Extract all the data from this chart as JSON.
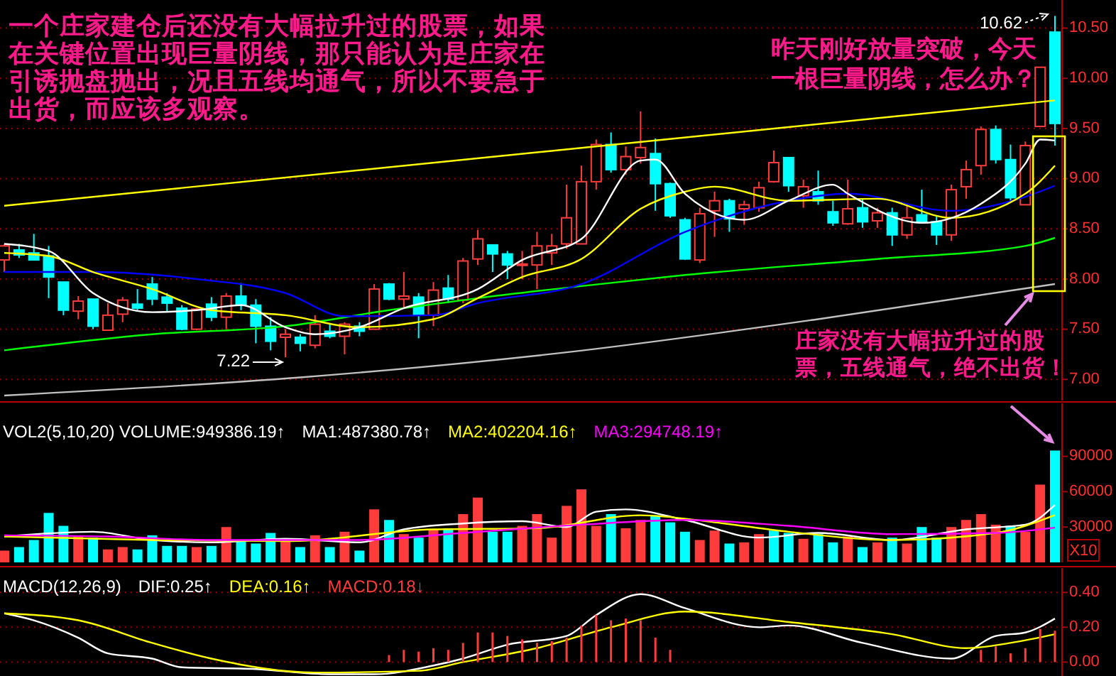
{
  "chart_data": [
    {
      "type": "candlestick",
      "categories": [
        null,
        null,
        null,
        null,
        null,
        null,
        null,
        null,
        null,
        null,
        null,
        null,
        null,
        null,
        null,
        null,
        null,
        null,
        null,
        null,
        null,
        null,
        null,
        null,
        null,
        null,
        null,
        null,
        null,
        null,
        null,
        null,
        null,
        null,
        null,
        null,
        null,
        null,
        null,
        null,
        null,
        null,
        null,
        null,
        null,
        null,
        null,
        null,
        null,
        null,
        null,
        null,
        null,
        null,
        null,
        null,
        null,
        null,
        null,
        null,
        null,
        null,
        null,
        null,
        null,
        null,
        null,
        null,
        null,
        null,
        null,
        null
      ],
      "ohlc": [
        [
          8.19,
          8.35,
          8.07,
          8.33
        ],
        [
          8.29,
          8.35,
          8.21,
          8.24
        ],
        [
          8.26,
          8.45,
          8.19,
          8.19
        ],
        [
          8.23,
          8.33,
          7.81,
          8.02
        ],
        [
          7.97,
          7.97,
          7.64,
          7.69
        ],
        [
          7.68,
          7.83,
          7.6,
          7.78
        ],
        [
          7.8,
          7.8,
          7.5,
          7.53
        ],
        [
          7.49,
          7.76,
          7.49,
          7.64
        ],
        [
          7.65,
          7.82,
          7.57,
          7.79
        ],
        [
          7.75,
          7.9,
          7.69,
          7.71
        ],
        [
          7.95,
          8.02,
          7.74,
          7.8
        ],
        [
          7.82,
          7.86,
          7.67,
          7.76
        ],
        [
          7.71,
          7.74,
          7.49,
          7.5
        ],
        [
          7.5,
          7.71,
          7.49,
          7.7
        ],
        [
          7.75,
          7.82,
          7.58,
          7.62
        ],
        [
          7.62,
          7.86,
          7.5,
          7.83
        ],
        [
          7.83,
          7.96,
          7.69,
          7.74
        ],
        [
          7.74,
          7.8,
          7.36,
          7.53
        ],
        [
          7.53,
          7.62,
          7.29,
          7.38
        ],
        [
          7.42,
          7.5,
          7.22,
          7.45
        ],
        [
          7.42,
          7.45,
          7.28,
          7.36
        ],
        [
          7.34,
          7.64,
          7.31,
          7.55
        ],
        [
          7.48,
          7.55,
          7.41,
          7.43
        ],
        [
          7.43,
          7.57,
          7.25,
          7.55
        ],
        [
          7.53,
          7.57,
          7.43,
          7.48
        ],
        [
          7.5,
          7.95,
          7.5,
          7.9
        ],
        [
          7.95,
          7.96,
          7.79,
          7.8
        ],
        [
          7.8,
          8.07,
          7.71,
          7.83
        ],
        [
          7.82,
          7.86,
          7.41,
          7.64
        ],
        [
          7.64,
          7.97,
          7.53,
          7.89
        ],
        [
          7.91,
          8.04,
          7.76,
          7.8
        ],
        [
          7.79,
          8.21,
          7.76,
          8.18
        ],
        [
          8.2,
          8.49,
          8.14,
          8.4
        ],
        [
          8.34,
          8.34,
          8.07,
          8.25
        ],
        [
          8.25,
          8.28,
          8,
          8.14
        ],
        [
          8.14,
          8.28,
          8,
          8.15
        ],
        [
          8.14,
          8.47,
          7.9,
          8.33
        ],
        [
          8.26,
          8.45,
          8.14,
          8.33
        ],
        [
          8.35,
          8.94,
          8.3,
          8.61
        ],
        [
          8.35,
          9.13,
          8.35,
          8.97
        ],
        [
          8.97,
          9.39,
          8.89,
          9.34
        ],
        [
          9.34,
          9.46,
          9.06,
          9.09
        ],
        [
          9.09,
          9.32,
          9.04,
          9.22
        ],
        [
          9.21,
          9.67,
          9.15,
          9.31
        ],
        [
          9.25,
          9.4,
          8.68,
          8.95
        ],
        [
          8.95,
          8.96,
          8.61,
          8.63
        ],
        [
          8.59,
          8.61,
          8.19,
          8.2
        ],
        [
          8.19,
          8.71,
          8.16,
          8.65
        ],
        [
          8.68,
          8.87,
          8.42,
          8.78
        ],
        [
          8.78,
          8.8,
          8.47,
          8.6
        ],
        [
          8.7,
          8.78,
          8.54,
          8.74
        ],
        [
          8.71,
          8.97,
          8.67,
          8.91
        ],
        [
          8.97,
          9.28,
          8.96,
          9.16
        ],
        [
          9.21,
          9.21,
          8.87,
          8.93
        ],
        [
          8.83,
          8.99,
          8.71,
          8.92
        ],
        [
          8.87,
          9.08,
          8.74,
          8.78
        ],
        [
          8.67,
          8.78,
          8.53,
          8.56
        ],
        [
          8.55,
          8.99,
          8.54,
          8.7
        ],
        [
          8.71,
          8.8,
          8.51,
          8.57
        ],
        [
          8.58,
          8.71,
          8.51,
          8.66
        ],
        [
          8.66,
          8.71,
          8.33,
          8.44
        ],
        [
          8.44,
          8.74,
          8.4,
          8.61
        ],
        [
          8.64,
          8.89,
          8.56,
          8.57
        ],
        [
          8.57,
          8.63,
          8.34,
          8.44
        ],
        [
          8.44,
          8.94,
          8.38,
          8.89
        ],
        [
          8.92,
          9.18,
          8.8,
          9.09
        ],
        [
          9.13,
          9.52,
          9.04,
          9.49
        ],
        [
          9.49,
          9.53,
          9.15,
          9.19
        ],
        [
          9.19,
          9.34,
          8.78,
          8.81
        ],
        [
          8.74,
          9.37,
          8.74,
          9.33
        ],
        [
          9.52,
          10.11,
          9.52,
          10.11
        ],
        [
          10.46,
          10.62,
          9.33,
          9.55
        ]
      ],
      "series": [
        {
          "type": "line",
          "color": "#ffff00",
          "values": [
            8.73,
            null,
            null,
            null,
            null,
            null,
            null,
            null,
            null,
            null,
            null,
            null,
            null,
            null,
            null,
            null,
            null,
            null,
            null,
            null,
            null,
            null,
            null,
            null,
            null,
            null,
            null,
            null,
            null,
            null,
            null,
            null,
            null,
            null,
            null,
            null,
            null,
            null,
            null,
            null,
            null,
            null,
            null,
            null,
            null,
            null,
            null,
            null,
            null,
            null,
            null,
            null,
            null,
            null,
            null,
            null,
            null,
            null,
            null,
            null,
            null,
            null,
            null,
            null,
            null,
            null,
            null,
            null,
            null,
            null,
            null,
            9.78
          ]
        },
        {
          "type": "line",
          "color": "#c0c0c0",
          "values": [
            6.84,
            null,
            null,
            null,
            null,
            null,
            null,
            null,
            null,
            null,
            null,
            null,
            null,
            null,
            null,
            null,
            null,
            null,
            null,
            null,
            7.02,
            null,
            null,
            null,
            null,
            null,
            null,
            null,
            null,
            null,
            null,
            null,
            null,
            null,
            null,
            null,
            null,
            null,
            7.27,
            null,
            null,
            null,
            null,
            null,
            null,
            null,
            null,
            null,
            null,
            null,
            null,
            null,
            null,
            null,
            null,
            7.6,
            null,
            null,
            null,
            null,
            null,
            null,
            null,
            null,
            null,
            null,
            null,
            null,
            null,
            null,
            null,
            7.95
          ]
        },
        {
          "type": "line",
          "color": "#00ff00",
          "values": [
            7.29,
            null,
            null,
            null,
            null,
            null,
            null,
            null,
            null,
            null,
            7.45,
            null,
            null,
            null,
            null,
            null,
            null,
            null,
            null,
            7.53,
            null,
            null,
            null,
            null,
            null,
            null,
            7.69,
            null,
            null,
            null,
            null,
            null,
            7.81,
            null,
            null,
            null,
            null,
            null,
            null,
            7.93,
            null,
            null,
            null,
            null,
            null,
            null,
            8.04,
            null,
            null,
            null,
            null,
            null,
            null,
            null,
            null,
            null,
            null,
            null,
            null,
            8.2,
            null,
            null,
            null,
            null,
            null,
            null,
            null,
            null,
            null,
            8.33,
            null,
            8.41
          ]
        },
        {
          "type": "line",
          "color": "#0000ff",
          "values": [
            8.07,
            null,
            null,
            null,
            null,
            null,
            8.07,
            null,
            null,
            null,
            null,
            null,
            null,
            8,
            null,
            null,
            null,
            null,
            null,
            7.86,
            null,
            null,
            null,
            7.63,
            null,
            null,
            null,
            null,
            null,
            7.64,
            null,
            null,
            7.76,
            null,
            null,
            null,
            null,
            null,
            null,
            7.95,
            null,
            null,
            null,
            null,
            null,
            null,
            8.47,
            null,
            null,
            null,
            null,
            null,
            null,
            8.78,
            null,
            null,
            null,
            8.85,
            null,
            null,
            null,
            null,
            null,
            null,
            8.68,
            null,
            null,
            null,
            null,
            8.82,
            null,
            8.93
          ]
        },
        {
          "type": "line",
          "color": "#ffff00",
          "values": [
            8.26,
            null,
            null,
            8.23,
            null,
            null,
            8.07,
            null,
            null,
            null,
            7.9,
            null,
            null,
            null,
            7.69,
            null,
            null,
            null,
            null,
            7.64,
            null,
            null,
            null,
            null,
            7.52,
            null,
            null,
            null,
            null,
            7.6,
            null,
            null,
            7.81,
            null,
            null,
            8.02,
            null,
            null,
            null,
            8.2,
            null,
            null,
            null,
            8.7,
            null,
            null,
            8.87,
            null,
            8.92,
            null,
            null,
            null,
            null,
            8.78,
            null,
            null,
            null,
            null,
            null,
            8.8,
            null,
            null,
            null,
            null,
            8.61,
            null,
            null,
            null,
            null,
            8.85,
            null,
            9.13
          ]
        },
        {
          "type": "line",
          "color": "#ffffff",
          "values": [
            8.35,
            null,
            null,
            8.28,
            null,
            null,
            7.86,
            null,
            null,
            null,
            7.67,
            null,
            null,
            7.69,
            null,
            null,
            7.74,
            null,
            null,
            7.52,
            null,
            7.45,
            null,
            null,
            7.52,
            null,
            null,
            7.71,
            null,
            null,
            null,
            null,
            7.9,
            null,
            null,
            8.19,
            null,
            null,
            null,
            8.4,
            null,
            null,
            null,
            9.18,
            9.19,
            null,
            8.85,
            null,
            null,
            null,
            8.59,
            null,
            null,
            8.78,
            null,
            null,
            8.94,
            8.85,
            null,
            null,
            null,
            null,
            8.56,
            null,
            null,
            null,
            8.75,
            null,
            null,
            9.15,
            9.39,
            9.38
          ]
        }
      ],
      "ylim": [
        6.79,
        10.78
      ],
      "yticks": [
        {
          "value": 7,
          "label": "7.00"
        },
        {
          "value": 7.5,
          "label": "7.50"
        },
        {
          "value": 8,
          "label": "8.00"
        },
        {
          "value": 8.5,
          "label": "8.50"
        },
        {
          "value": 9,
          "label": "9.00"
        },
        {
          "value": 9.5,
          "label": "9.50"
        },
        {
          "value": 10,
          "label": "10.00"
        },
        {
          "value": 10.5,
          "label": "10.50"
        }
      ],
      "grid": "y",
      "tick_labels": "y",
      "annotations": [
        "一个庄家建仓后还没有大幅拉升过的股票，如果在关键位置出现巨量阴线，那只能认为是庄家在引诱抛盘抛出，况且五线均通气，所以不要急于出货，而应该多观察。",
        "昨天刚好放量突破，今天一根巨量阴线，怎么办？",
        "庄家没有大幅拉升过的股票，五线通气，绝不出货！",
        "7.22",
        "10.62"
      ]
    },
    {
      "type": "bar",
      "title": "VOL2(5,10,20) VOLUME:949386.19↑",
      "categories": [
        null,
        null,
        null,
        null,
        null,
        null,
        null,
        null,
        null,
        null,
        null,
        null,
        null,
        null,
        null,
        null,
        null,
        null,
        null,
        null,
        null,
        null,
        null,
        null,
        null,
        null,
        null,
        null,
        null,
        null,
        null,
        null,
        null,
        null,
        null,
        null,
        null,
        null,
        null,
        null,
        null,
        null,
        null,
        null,
        null,
        null,
        null,
        null,
        null,
        null,
        null,
        null,
        null,
        null,
        null,
        null,
        null,
        null,
        null,
        null,
        null,
        null,
        null,
        null,
        null,
        null,
        null,
        null,
        null,
        null,
        null,
        null
      ],
      "series": [
        {
          "type": "bar",
          "colors": [
            "#ff3c3c",
            "#00ffff",
            "#00ffff",
            "#00ffff",
            "#00ffff",
            "#ff3c3c",
            "#00ffff",
            "#ff3c3c",
            "#ff3c3c",
            "#00ffff",
            "#00ffff",
            "#00ffff",
            "#00ffff",
            "#ff3c3c",
            "#00ffff",
            "#ff3c3c",
            "#00ffff",
            "#00ffff",
            "#00ffff",
            "#ff3c3c",
            "#00ffff",
            "#ff3c3c",
            "#00ffff",
            "#ff3c3c",
            "#00ffff",
            "#ff3c3c",
            "#00ffff",
            "#ff3c3c",
            "#00ffff",
            "#ff3c3c",
            "#00ffff",
            "#ff3c3c",
            "#ff3c3c",
            "#00ffff",
            "#00ffff",
            "#ff3c3c",
            "#ff3c3c",
            "#ff3c3c",
            "#ff3c3c",
            "#ff3c3c",
            "#ff3c3c",
            "#00ffff",
            "#ff3c3c",
            "#ff3c3c",
            "#00ffff",
            "#00ffff",
            "#00ffff",
            "#ff3c3c",
            "#ff3c3c",
            "#00ffff",
            "#ff3c3c",
            "#ff3c3c",
            "#00ffff",
            "#00ffff",
            "#ff3c3c",
            "#00ffff",
            "#00ffff",
            "#ff3c3c",
            "#00ffff",
            "#ff3c3c",
            "#00ffff",
            "#ff3c3c",
            "#00ffff",
            "#00ffff",
            "#ff3c3c",
            "#ff3c3c",
            "#ff3c3c",
            "#ff3c3c",
            "#00ffff",
            "#ff3c3c",
            "#ff3c3c",
            "#00ffff"
          ],
          "values": [
            10000,
            13000,
            19000,
            42000,
            31000,
            22000,
            21000,
            11000,
            13000,
            11000,
            23000,
            14000,
            14000,
            13000,
            14000,
            30000,
            19000,
            16000,
            25000,
            20000,
            13000,
            23000,
            13000,
            26000,
            10000,
            45000,
            36000,
            24000,
            21000,
            28000,
            29000,
            41000,
            55000,
            26000,
            26000,
            31000,
            41000,
            21000,
            48000,
            62000,
            31000,
            41000,
            29000,
            36000,
            40000,
            34000,
            26000,
            19000,
            27000,
            16000,
            17000,
            24000,
            27000,
            25000,
            20000,
            24000,
            17000,
            22000,
            13000,
            17000,
            21000,
            16000,
            30000,
            21000,
            30000,
            36000,
            41000,
            32000,
            31000,
            26000,
            66000,
            94939
          ]
        },
        {
          "type": "line",
          "name": "MA1:487380.78↑",
          "color": "#ffffff",
          "values": [
            22000,
            null,
            null,
            null,
            null,
            null,
            26000,
            null,
            null,
            null,
            19000,
            null,
            null,
            null,
            17000,
            null,
            null,
            null,
            null,
            20000,
            null,
            null,
            null,
            null,
            17000,
            null,
            null,
            28000,
            null,
            null,
            null,
            33000,
            null,
            null,
            null,
            35000,
            null,
            null,
            30000,
            null,
            43000,
            null,
            45000,
            null,
            null,
            null,
            36000,
            null,
            null,
            null,
            null,
            21000,
            null,
            null,
            null,
            25000,
            null,
            null,
            null,
            null,
            19000,
            null,
            null,
            null,
            null,
            28000,
            null,
            null,
            null,
            32000,
            null,
            48738
          ]
        },
        {
          "type": "line",
          "name": "MA2:402204.16↑",
          "color": "#ffff00",
          "values": [
            22000,
            null,
            null,
            null,
            null,
            null,
            null,
            null,
            null,
            null,
            19000,
            null,
            null,
            null,
            null,
            null,
            null,
            null,
            null,
            18000,
            null,
            null,
            null,
            null,
            null,
            null,
            null,
            null,
            null,
            28000,
            null,
            null,
            null,
            null,
            null,
            null,
            29000,
            null,
            null,
            null,
            null,
            null,
            null,
            40000,
            null,
            null,
            null,
            null,
            34000,
            null,
            null,
            null,
            null,
            26000,
            null,
            null,
            null,
            null,
            null,
            null,
            19000,
            null,
            null,
            null,
            null,
            null,
            null,
            25000,
            null,
            null,
            null,
            40220
          ]
        },
        {
          "type": "line",
          "name": "MA3:294748.19↑",
          "color": "#ff00ff",
          "values": [
            23000,
            null,
            null,
            null,
            null,
            null,
            null,
            22000,
            null,
            null,
            null,
            null,
            null,
            null,
            19000,
            null,
            null,
            null,
            null,
            null,
            null,
            null,
            null,
            null,
            19000,
            null,
            null,
            null,
            null,
            null,
            null,
            25000,
            null,
            null,
            null,
            null,
            null,
            null,
            null,
            32000,
            null,
            null,
            null,
            null,
            null,
            null,
            36000,
            null,
            null,
            null,
            null,
            null,
            null,
            31000,
            null,
            null,
            null,
            null,
            null,
            null,
            24000,
            null,
            null,
            null,
            null,
            null,
            null,
            25000,
            null,
            null,
            null,
            29475
          ]
        }
      ],
      "ylim": [
        0,
        135000
      ],
      "yticks": [
        30000,
        60000,
        90000
      ],
      "legend": "top left",
      "tick_labels": "y",
      "annotations": [
        "X10"
      ]
    },
    {
      "type": "bar",
      "title": "MACD(12,26,9)",
      "categories": [
        null,
        null,
        null,
        null,
        null,
        null,
        null,
        null,
        null,
        null,
        null,
        null,
        null,
        null,
        null,
        null,
        null,
        null,
        null,
        null,
        null,
        null,
        null,
        null,
        null,
        null,
        null,
        null,
        null,
        null,
        null,
        null,
        null,
        null,
        null,
        null,
        null,
        null,
        null,
        null,
        null,
        null,
        null,
        null,
        null,
        null,
        null,
        null,
        null,
        null,
        null,
        null,
        null,
        null,
        null,
        null,
        null,
        null,
        null,
        null,
        null,
        null,
        null,
        null,
        null,
        null,
        null,
        null,
        null,
        null,
        null,
        null
      ],
      "series": [
        {
          "type": "line",
          "name": "DIF:0.25↑",
          "color": "#ffffff",
          "values": [
            0.28,
            null,
            0.24,
            null,
            null,
            0.14,
            null,
            0.05,
            null,
            null,
            0.02,
            null,
            -0.03,
            null,
            null,
            null,
            null,
            -0.04,
            null,
            null,
            null,
            null,
            -0.07,
            null,
            null,
            -0.07,
            null,
            null,
            null,
            -0.02,
            null,
            0.02,
            null,
            null,
            0.1,
            null,
            null,
            null,
            0.15,
            null,
            0.27,
            null,
            null,
            0.39,
            null,
            null,
            0.31,
            null,
            null,
            null,
            null,
            0.2,
            null,
            0.21,
            null,
            null,
            null,
            null,
            0.11,
            null,
            null,
            null,
            null,
            null,
            0.02,
            null,
            null,
            0.15,
            null,
            0.17,
            null,
            0.25
          ]
        },
        {
          "type": "line",
          "name": "DEA:0.16↑",
          "color": "#ffff00",
          "values": [
            0.28,
            null,
            null,
            null,
            null,
            0.24,
            null,
            null,
            null,
            null,
            0.11,
            null,
            null,
            null,
            0.02,
            null,
            null,
            null,
            null,
            null,
            null,
            -0.06,
            null,
            null,
            null,
            null,
            null,
            null,
            -0.05,
            null,
            null,
            0,
            null,
            null,
            null,
            null,
            0.08,
            null,
            null,
            null,
            null,
            0.2,
            null,
            null,
            null,
            null,
            0.29,
            null,
            null,
            null,
            null,
            null,
            null,
            0.23,
            null,
            null,
            null,
            null,
            null,
            null,
            0.16,
            null,
            null,
            null,
            null,
            0.08,
            null,
            null,
            0.11,
            null,
            null,
            0.16
          ]
        },
        {
          "type": "bar",
          "name": "MACD:0.18↓",
          "colors": [
            null,
            null,
            null,
            null,
            null,
            null,
            null,
            null,
            null,
            null,
            null,
            null,
            null,
            null,
            null,
            null,
            null,
            null,
            null,
            null,
            null,
            null,
            null,
            null,
            null,
            null,
            "#ff3c3c",
            "#ff3c3c",
            "#ff3c3c",
            "#ff3c3c",
            "#ff3c3c",
            "#ff3c3c",
            "#ff3c3c",
            "#ff3c3c",
            "#ff3c3c",
            "#ff3c3c",
            "#ff3c3c",
            "#ff3c3c",
            "#ff3c3c",
            "#ff3c3c",
            "#ff3c3c",
            "#ff3c3c",
            "#ff3c3c",
            "#ff3c3c",
            "#ff3c3c",
            "#ff3c3c",
            null,
            null,
            null,
            null,
            null,
            null,
            null,
            null,
            null,
            null,
            null,
            null,
            null,
            null,
            null,
            null,
            null,
            null,
            null,
            null,
            "#ff3c3c",
            "#ff3c3c",
            "#ff3c3c",
            "#ff3c3c",
            "#ff3c3c",
            "#ff3c3c"
          ],
          "values": [
            null,
            null,
            null,
            null,
            null,
            null,
            null,
            null,
            null,
            null,
            null,
            null,
            null,
            null,
            null,
            null,
            null,
            null,
            null,
            null,
            null,
            null,
            null,
            null,
            null,
            null,
            0.04,
            0.07,
            0.06,
            0.08,
            0.07,
            0.11,
            0.17,
            0.17,
            0.15,
            0.13,
            0.11,
            0.12,
            0.14,
            0.21,
            0.27,
            0.24,
            0.25,
            0.24,
            0.14,
            0.07,
            null,
            null,
            null,
            null,
            null,
            null,
            null,
            null,
            null,
            null,
            null,
            null,
            null,
            null,
            null,
            null,
            null,
            null,
            null,
            null,
            0.07,
            0.09,
            0.05,
            0.08,
            0.19,
            0.18
          ]
        }
      ],
      "ylim": [
        -0.08,
        0.54
      ],
      "yticks": [
        {
          "value": 0,
          "label": "0.00"
        },
        {
          "value": 0.2,
          "label": "0.20"
        },
        {
          "value": 0.4,
          "label": "0.40"
        }
      ],
      "grid": "y",
      "legend": "top left",
      "tick_labels": "y"
    }
  ]
}
